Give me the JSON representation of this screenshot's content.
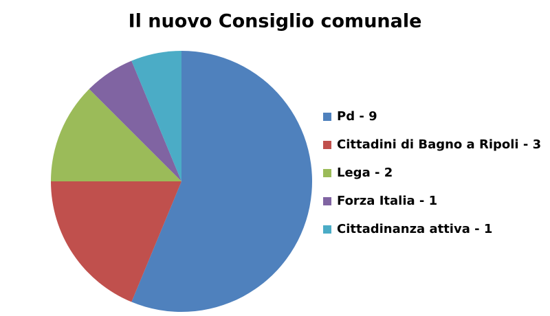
{
  "chart_data": {
    "type": "pie",
    "title": "Il nuovo Consiglio comunale",
    "categories": [
      "Pd - 9",
      "Cittadini di Bagno a Ripoli - 3",
      "Lega - 2",
      "Forza Italia - 1",
      "Cittadinanza attiva - 1"
    ],
    "values": [
      9,
      3,
      2,
      1,
      1
    ],
    "colors": [
      "#4f81bd",
      "#c0504d",
      "#9bbb59",
      "#8064a2",
      "#4bacc6"
    ],
    "legend": "right"
  }
}
